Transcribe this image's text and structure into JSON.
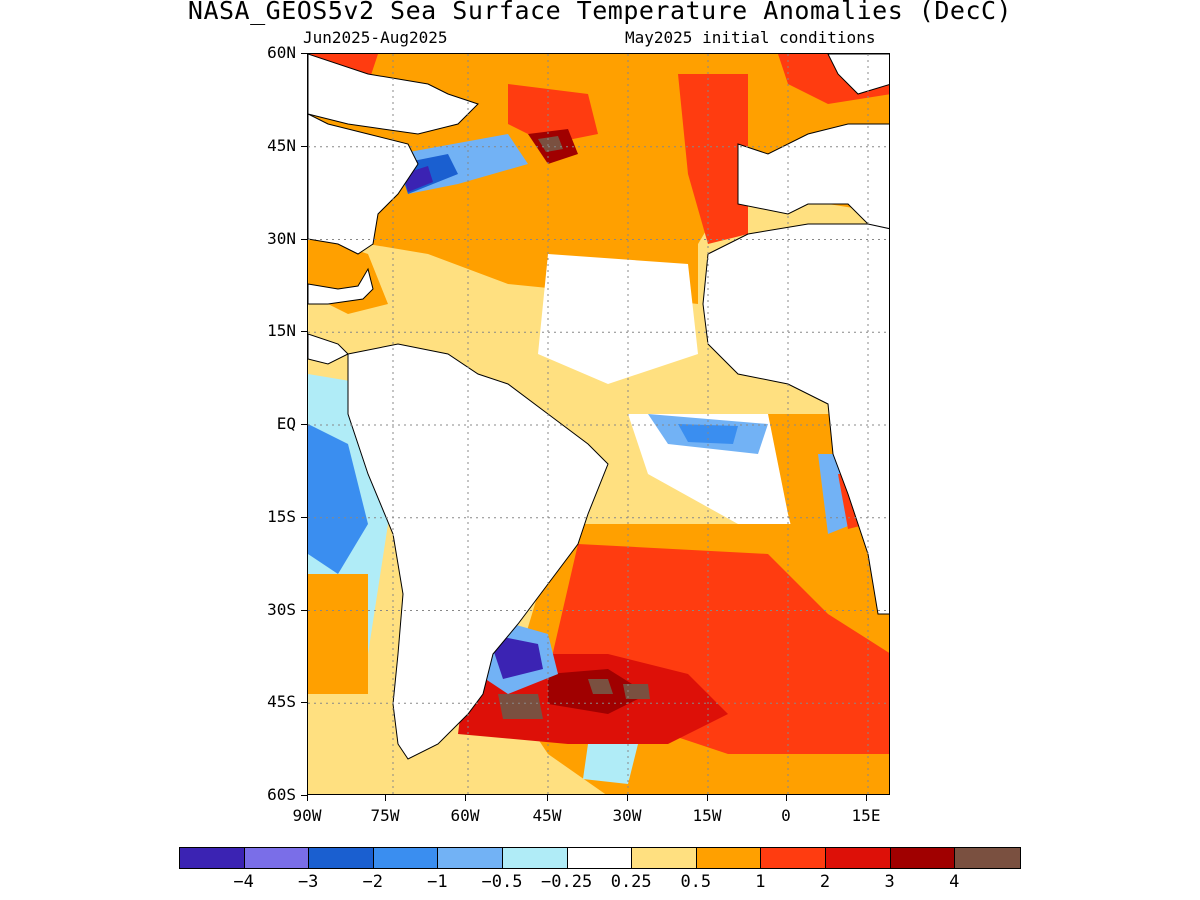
{
  "header": {
    "title": "NASA_GEOS5v2 Sea Surface Temperature Anomalies (DecC)",
    "period": "Jun2025-Aug2025",
    "init": "May2025 initial conditions"
  },
  "axes": {
    "lat_labels": [
      "60N",
      "45N",
      "30N",
      "15N",
      "EQ",
      "15S",
      "30S",
      "45S",
      "60S"
    ],
    "lon_labels": [
      "90W",
      "75W",
      "60W",
      "45W",
      "30W",
      "15W",
      "0",
      "15E"
    ]
  },
  "colorbar": {
    "colors": [
      "#3b23b3",
      "#7a6ee8",
      "#1a5fd0",
      "#3a8ef0",
      "#72b2f5",
      "#b0ecf7",
      "#ffffff",
      "#ffe080",
      "#ffa000",
      "#ff3c10",
      "#dd1008",
      "#a00000",
      "#7a5040"
    ],
    "labels": [
      "-4",
      "-3",
      "-2",
      "-1",
      "-0.5",
      "-0.25",
      "0.25",
      "0.5",
      "1",
      "2",
      "3",
      "4"
    ]
  },
  "map_features": {
    "land": "white",
    "gridlines": "dotted"
  }
}
